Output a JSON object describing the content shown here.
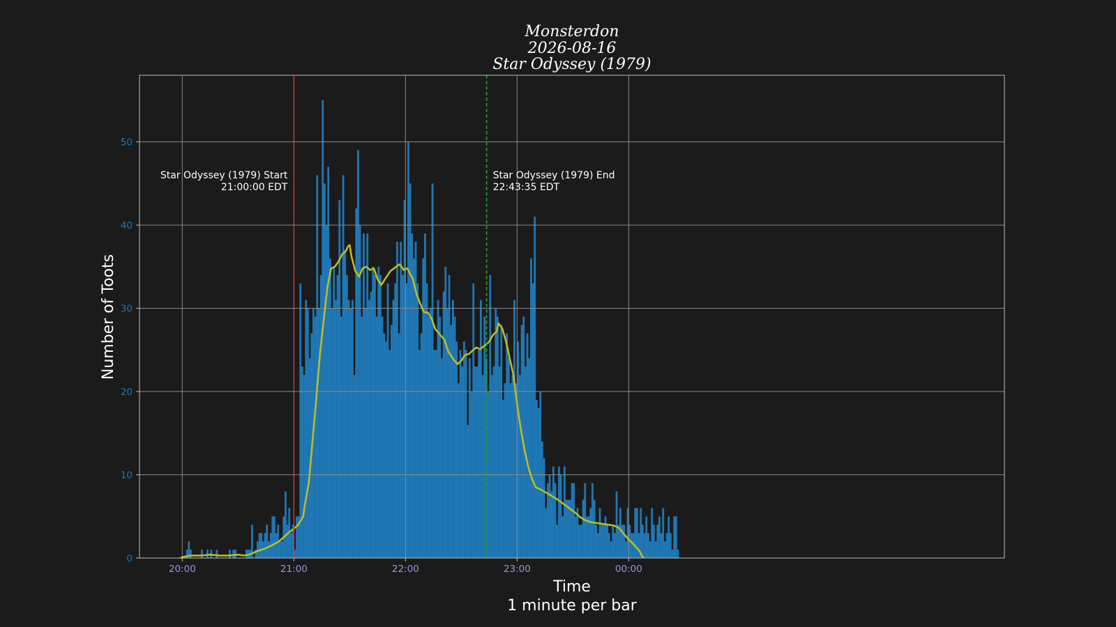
{
  "chart_data": {
    "type": "bar",
    "title_lines": [
      "Monsterdon",
      "2026-08-16",
      "Star Odyssey (1979)"
    ],
    "xlabel": "Time",
    "xlabel_sub": "1 minute per bar",
    "ylabel": "Number of Toots",
    "x_unit": "minutes after 20:00",
    "xlim": [
      -23,
      442
    ],
    "ylim": [
      0,
      58
    ],
    "x_ticks": [
      {
        "value": 0,
        "label": "20:00"
      },
      {
        "value": 60,
        "label": "21:00"
      },
      {
        "value": 120,
        "label": "22:00"
      },
      {
        "value": 180,
        "label": "23:00"
      },
      {
        "value": 240,
        "label": "00:00"
      }
    ],
    "y_ticks": [
      0,
      10,
      20,
      30,
      40,
      50
    ],
    "grid": true,
    "bar_start": 0,
    "values": [
      0,
      0,
      1,
      2,
      1,
      0,
      0,
      0,
      0,
      0,
      1,
      0,
      0,
      1,
      0,
      1,
      0,
      0,
      1,
      0,
      0,
      0,
      0,
      0,
      0,
      1,
      0,
      1,
      1,
      0,
      0,
      0,
      0,
      0,
      1,
      1,
      1,
      4,
      0,
      1,
      2,
      3,
      3,
      2,
      3,
      4,
      2,
      3,
      5,
      5,
      3,
      4,
      2,
      2,
      5,
      8,
      4,
      6,
      3,
      4,
      1,
      5,
      5,
      33,
      23,
      22,
      31,
      30,
      24,
      27,
      30,
      29,
      46,
      30,
      34,
      55,
      45,
      40,
      47,
      36,
      30,
      35,
      31,
      34,
      43,
      29,
      46,
      37,
      34,
      31,
      30,
      31,
      22,
      42,
      49,
      40,
      29,
      39,
      30,
      39,
      31,
      32,
      35,
      34,
      29,
      35,
      34,
      29,
      27,
      26,
      33,
      25,
      28,
      31,
      33,
      38,
      27,
      38,
      34,
      43,
      33,
      50,
      45,
      39,
      36,
      38,
      33,
      25,
      27,
      36,
      39,
      33,
      29,
      30,
      45,
      25,
      25,
      31,
      29,
      24,
      32,
      35,
      30,
      34,
      28,
      31,
      29,
      26,
      21,
      25,
      23,
      26,
      25,
      16,
      24,
      20,
      33,
      23,
      23,
      25,
      31,
      22,
      29,
      24,
      20,
      34,
      22,
      23,
      30,
      29,
      23,
      28,
      19,
      21,
      27,
      24,
      21,
      22,
      31,
      21,
      26,
      22,
      28,
      29,
      23,
      27,
      24,
      36,
      33,
      41,
      19,
      18,
      20,
      14,
      12,
      6,
      9,
      10,
      8,
      11,
      9,
      4,
      11,
      10,
      5,
      11,
      7,
      7,
      7,
      9,
      9,
      5,
      6,
      4,
      4,
      7,
      9,
      5,
      5,
      6,
      9,
      7,
      4,
      3,
      6,
      4,
      4,
      5,
      4,
      3,
      2,
      4,
      3,
      8,
      4,
      6,
      4,
      4,
      2,
      6,
      4,
      3,
      3,
      6,
      6,
      3,
      6,
      4,
      3,
      5,
      3,
      2,
      6,
      4,
      2,
      4,
      5,
      3,
      6,
      2,
      3,
      5,
      3,
      1,
      5,
      5,
      1
    ],
    "series": [
      {
        "color": "#1f77b4"
      },
      {
        "color": "#bcbd22",
        "points": [
          [
            -1,
            0
          ],
          [
            0,
            0.1
          ],
          [
            4,
            0.3
          ],
          [
            10,
            0.3
          ],
          [
            15,
            0.4
          ],
          [
            20,
            0.3
          ],
          [
            25,
            0.3
          ],
          [
            30,
            0.4
          ],
          [
            33,
            0.3
          ],
          [
            36,
            0.4
          ],
          [
            40,
            0.8
          ],
          [
            44,
            1.1
          ],
          [
            48,
            1.5
          ],
          [
            52,
            2.0
          ],
          [
            55,
            2.6
          ],
          [
            58,
            3.2
          ],
          [
            62,
            3.9
          ],
          [
            65,
            5.0
          ],
          [
            66,
            6.5
          ],
          [
            68,
            9.0
          ],
          [
            70,
            14.0
          ],
          [
            72,
            19.0
          ],
          [
            74,
            24.5
          ],
          [
            76,
            28.5
          ],
          [
            78,
            32.5
          ],
          [
            80,
            34.8
          ],
          [
            82,
            35.0
          ],
          [
            84,
            35.6
          ],
          [
            86,
            36.5
          ],
          [
            88,
            36.9
          ],
          [
            89,
            37.4
          ],
          [
            90,
            37.6
          ],
          [
            91,
            36.2
          ],
          [
            93,
            34.5
          ],
          [
            95,
            33.8
          ],
          [
            97,
            34.8
          ],
          [
            99,
            35.0
          ],
          [
            101,
            34.6
          ],
          [
            103,
            34.8
          ],
          [
            105,
            33.5
          ],
          [
            107,
            32.8
          ],
          [
            109,
            33.5
          ],
          [
            112,
            34.5
          ],
          [
            115,
            35.0
          ],
          [
            117,
            35.3
          ],
          [
            119,
            34.6
          ],
          [
            121,
            34.8
          ],
          [
            124,
            33.5
          ],
          [
            126,
            31.7
          ],
          [
            128,
            30.5
          ],
          [
            130,
            29.5
          ],
          [
            132,
            29.5
          ],
          [
            134,
            28.8
          ],
          [
            136,
            27.5
          ],
          [
            138,
            27.0
          ],
          [
            141,
            26.2
          ],
          [
            143,
            24.8
          ],
          [
            146,
            23.8
          ],
          [
            148,
            23.3
          ],
          [
            150,
            23.7
          ],
          [
            152,
            24.4
          ],
          [
            154,
            24.5
          ],
          [
            156,
            24.9
          ],
          [
            158,
            25.3
          ],
          [
            160,
            25.1
          ],
          [
            162,
            25.4
          ],
          [
            165,
            26.0
          ],
          [
            167,
            26.8
          ],
          [
            169,
            27.2
          ],
          [
            170,
            28.2
          ],
          [
            172,
            27.6
          ],
          [
            174,
            26.1
          ],
          [
            176,
            24.0
          ],
          [
            178,
            22.0
          ],
          [
            180,
            18.5
          ],
          [
            182,
            15.5
          ],
          [
            184,
            13.0
          ],
          [
            186,
            11.0
          ],
          [
            188,
            9.5
          ],
          [
            190,
            8.5
          ],
          [
            193,
            8.2
          ],
          [
            196,
            7.8
          ],
          [
            199,
            7.4
          ],
          [
            202,
            7.0
          ],
          [
            205,
            6.5
          ],
          [
            208,
            6.0
          ],
          [
            211,
            5.5
          ],
          [
            214,
            4.9
          ],
          [
            217,
            4.5
          ],
          [
            220,
            4.3
          ],
          [
            223,
            4.2
          ],
          [
            226,
            4.1
          ],
          [
            229,
            4.0
          ],
          [
            232,
            3.9
          ],
          [
            235,
            3.6
          ],
          [
            237,
            3.0
          ],
          [
            240,
            2.2
          ],
          [
            242,
            1.8
          ],
          [
            244,
            1.3
          ],
          [
            246,
            0.8
          ],
          [
            247,
            0.3
          ],
          [
            248,
            0.0
          ]
        ]
      }
    ],
    "annotations": [
      {
        "x": 60,
        "color": "#d62728",
        "align": "left",
        "line1": "Star Odyssey (1979) Start",
        "line2": "21:00:00 EDT"
      },
      {
        "x": 163.6,
        "color": "#2ca02c",
        "align": "right",
        "line1": "Star Odyssey (1979) End",
        "line2": "22:43:35 EDT"
      }
    ],
    "colors": {
      "background": "#1b1b1b",
      "bars": "#1f77b4",
      "trend": "#bcbd22",
      "tick_y": "#1f77b4",
      "tick_x": "#9b95e0",
      "text": "#ffffff",
      "grid": "#8a8a8a"
    }
  }
}
